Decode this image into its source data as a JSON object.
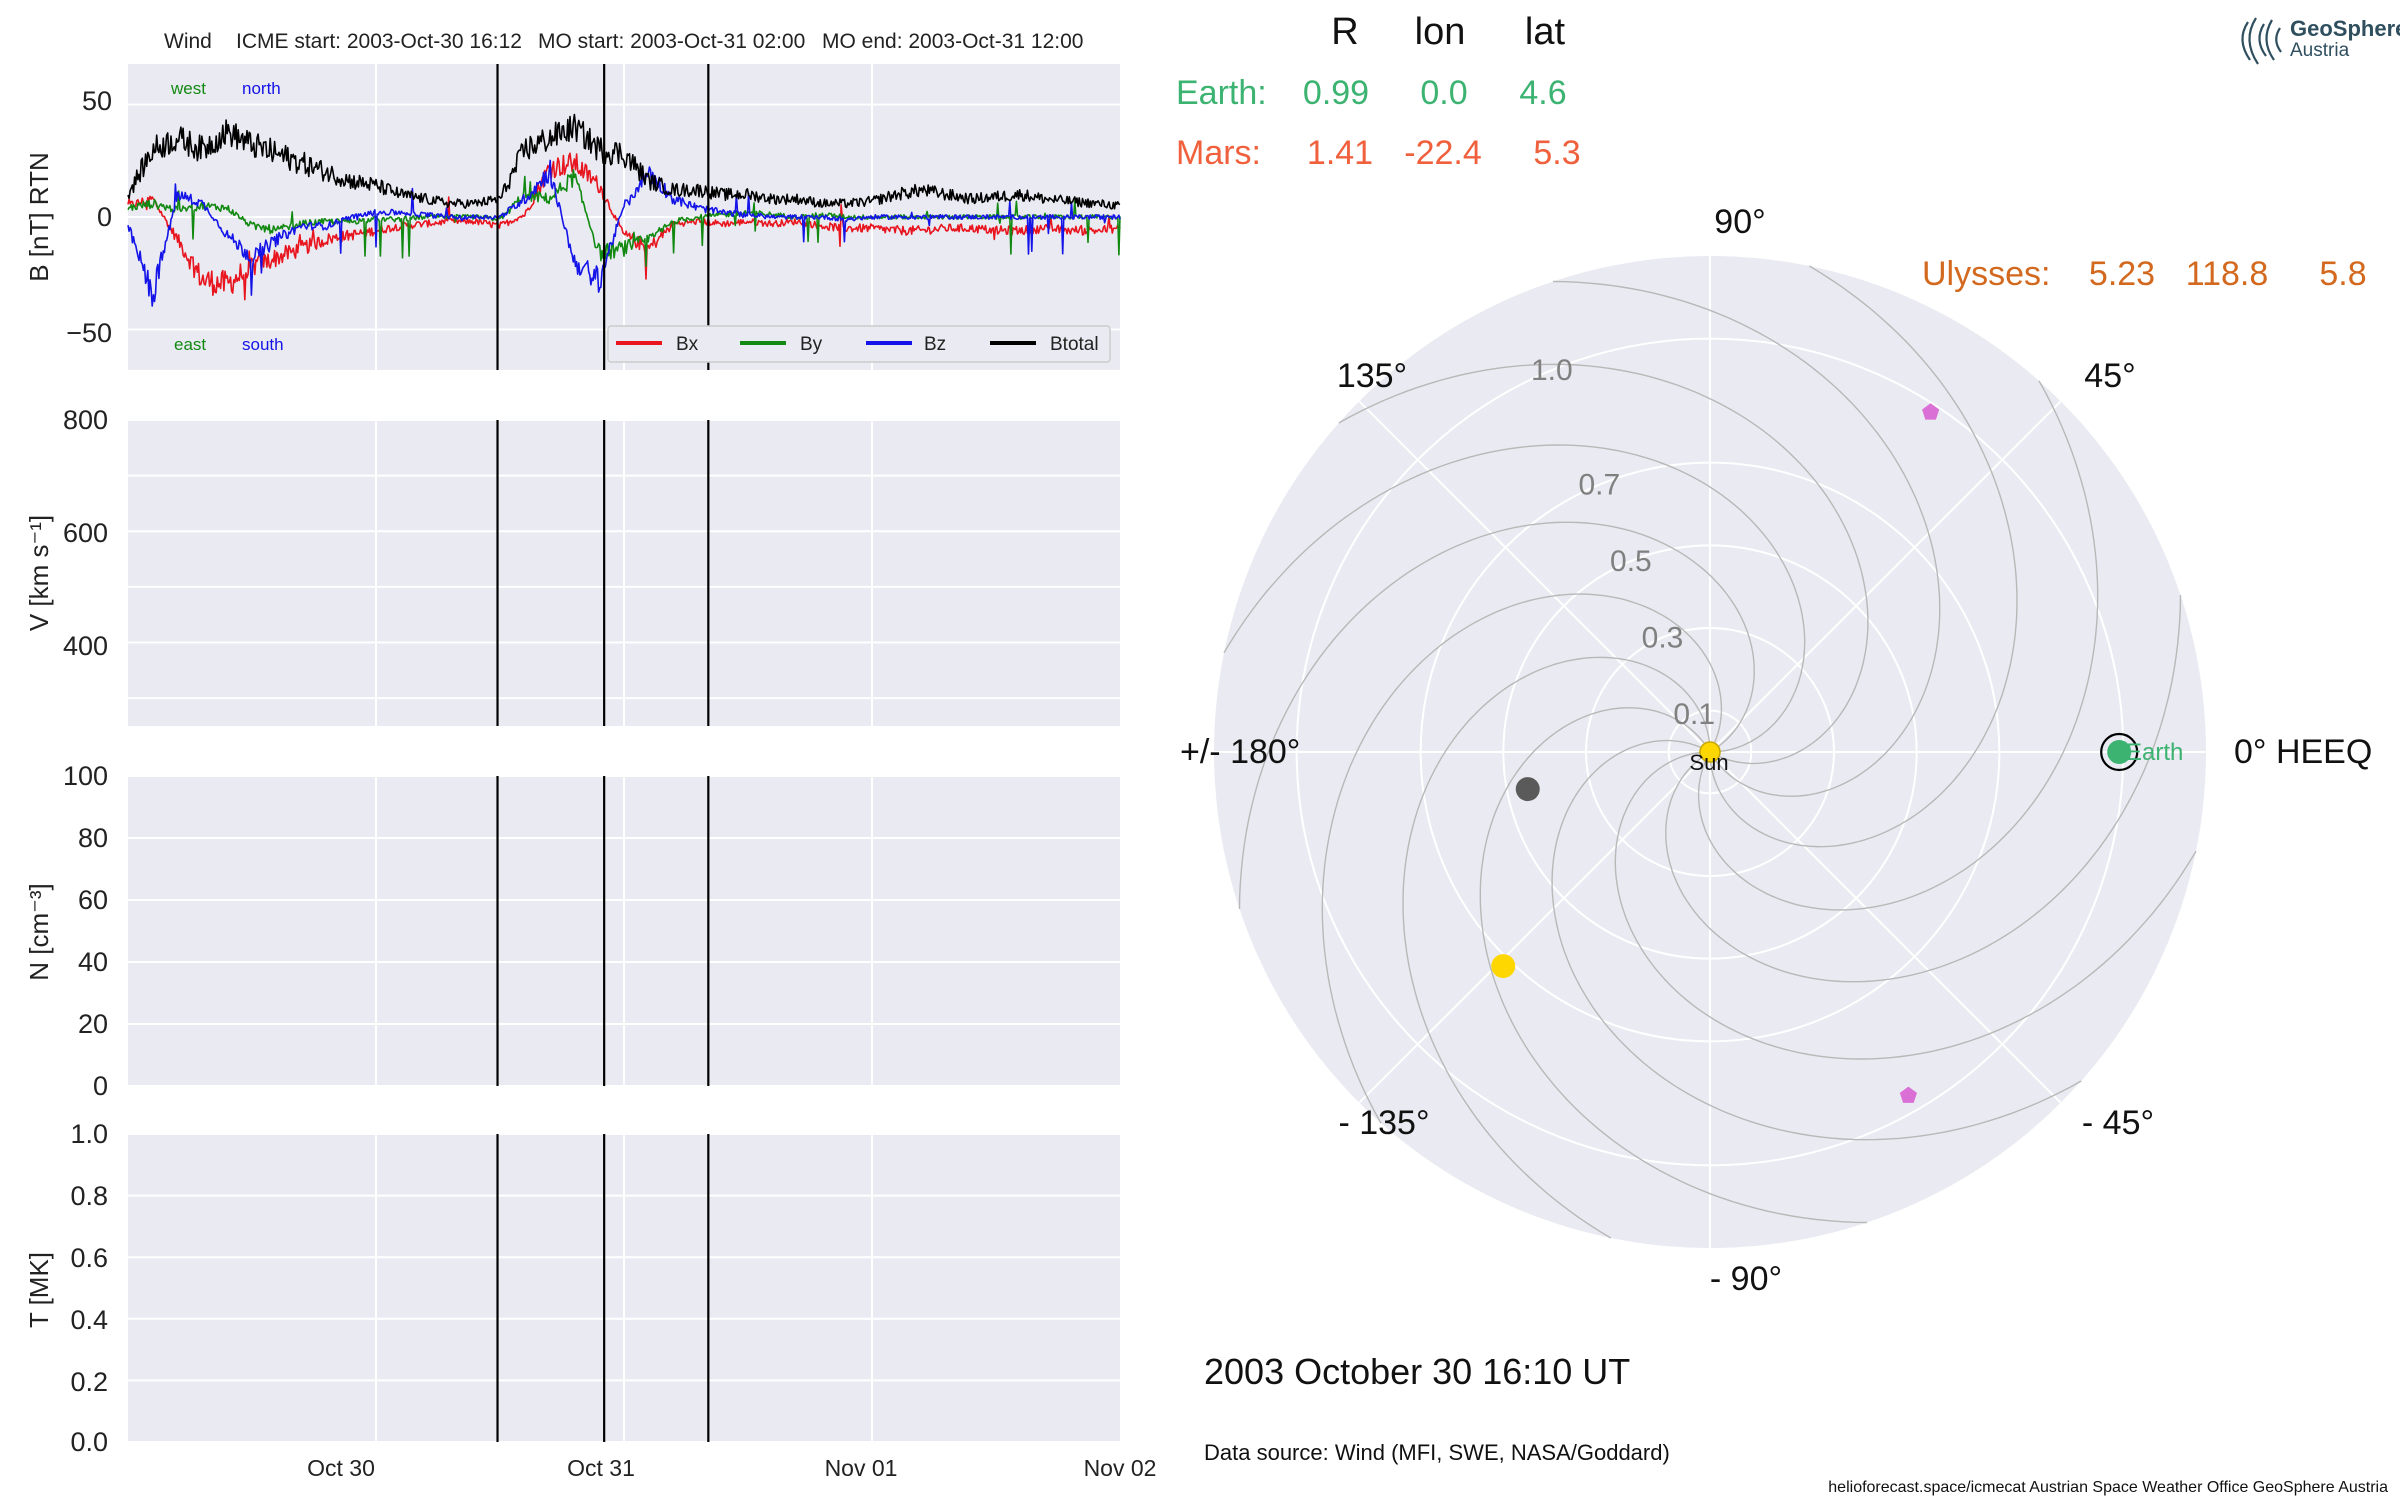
{
  "header": {
    "spacecraft": "Wind",
    "icme_start": "ICME start: 2003-Oct-30 16:12",
    "mo_start": "MO start: 2003-Oct-31 02:00",
    "mo_end": "MO end: 2003-Oct-31 12:00"
  },
  "planet_table": {
    "col_headers": [
      "R",
      "lon",
      "lat"
    ],
    "rows": [
      {
        "name": "Earth:",
        "R": "0.99",
        "lon": "0.0",
        "lat": "4.6",
        "color": "#3cb371"
      },
      {
        "name": "Mars:",
        "R": "1.41",
        "lon": "-22.4",
        "lat": "5.3",
        "color": "#f0603c"
      },
      {
        "name": "Ulysses:",
        "R": "5.23",
        "lon": "118.8",
        "lat": "5.8",
        "color": "#d2691e"
      }
    ]
  },
  "logo": {
    "line1": "GeoSphere",
    "line2": "Austria"
  },
  "date_label": "2003 October 30  16:10 UT",
  "data_source": "Data source: Wind (MFI, SWE, NASA/Goddard)",
  "footer": "helioforecast.space/icmecat   Austrian Space Weather Office   GeoSphere Austria",
  "chart_data": [
    {
      "type": "line",
      "ylabel": "B [nT] RTN",
      "ylim": [
        -68,
        68
      ],
      "yticks": [
        "50",
        "0",
        "−50"
      ],
      "x_range_days": [
        0,
        4
      ],
      "annotations": {
        "west": "west",
        "north": "north",
        "east": "east",
        "south": "south"
      },
      "event_lines_days": [
        1.49,
        1.92,
        2.34
      ],
      "legend": [
        "Bx",
        "By",
        "Bz",
        "Btotal"
      ],
      "series": [
        {
          "name": "Bx",
          "color": "#e8141e",
          "values": [
            5,
            8,
            -10,
            -28,
            -30,
            -22,
            -18,
            -14,
            -10,
            -8,
            -6,
            -4,
            -3,
            -2,
            -2,
            -4,
            1,
            22,
            24,
            14,
            -8,
            -14,
            -3,
            -2,
            -3,
            -2,
            -3,
            -2,
            -4,
            -5,
            -5,
            -6,
            -6,
            -5,
            -5,
            -6,
            -6,
            -5,
            -6,
            -6,
            -5
          ]
        },
        {
          "name": "By",
          "color": "#128a12",
          "values": [
            4,
            6,
            3,
            5,
            4,
            -4,
            -6,
            -3,
            -2,
            -2,
            -1,
            -1,
            0,
            0,
            0,
            -1,
            10,
            8,
            18,
            -16,
            -14,
            -10,
            -2,
            0,
            1,
            2,
            1,
            0,
            1,
            0,
            0,
            0,
            0,
            0,
            0,
            0,
            0,
            0,
            0,
            0,
            0
          ]
        },
        {
          "name": "Bz",
          "color": "#1414e8",
          "values": [
            -4,
            -35,
            10,
            6,
            -8,
            -18,
            -10,
            -4,
            -4,
            0,
            2,
            2,
            1,
            0,
            0,
            0,
            8,
            20,
            -20,
            -28,
            5,
            20,
            8,
            4,
            2,
            1,
            0,
            0,
            0,
            -1,
            0,
            0,
            0,
            0,
            0,
            0,
            0,
            0,
            0,
            0,
            0
          ]
        },
        {
          "name": "Btotal",
          "color": "#000000",
          "values": [
            10,
            30,
            35,
            30,
            38,
            32,
            28,
            24,
            20,
            16,
            14,
            10,
            8,
            6,
            6,
            8,
            30,
            35,
            40,
            30,
            28,
            16,
            12,
            12,
            10,
            10,
            8,
            8,
            6,
            6,
            7,
            10,
            12,
            10,
            8,
            9,
            10,
            8,
            7,
            6,
            5
          ]
        }
      ]
    },
    {
      "type": "line",
      "ylabel": "V [km s⁻¹]",
      "ylim": [
        250,
        800
      ],
      "yticks": [
        "800",
        "600",
        "400"
      ],
      "series": []
    },
    {
      "type": "line",
      "ylabel": "N [cm⁻³]",
      "ylim": [
        0,
        100
      ],
      "yticks": [
        "100",
        "80",
        "60",
        "40",
        "20",
        "0"
      ],
      "series": []
    },
    {
      "type": "line",
      "ylabel": "T [MK]",
      "ylim": [
        0,
        1
      ],
      "yticks": [
        "1.0",
        "0.8",
        "0.6",
        "0.4",
        "0.2",
        "0.0"
      ],
      "xticks": [
        "Oct 30",
        "Oct 31",
        "Nov 01",
        "Nov 02"
      ],
      "series": []
    },
    {
      "type": "scatter",
      "polar": true,
      "rticks": [
        "0.1",
        "0.3",
        "0.5",
        "0.7",
        "1.0"
      ],
      "angle_labels": {
        "a0": "0° HEEQ",
        "a45": "45°",
        "a90": "90°",
        "a135": "135°",
        "a180": "+/- 180°",
        "am135": "- 135°",
        "am90": "- 90°",
        "am45": "- 45°"
      },
      "sun_label": "Sun",
      "earth_label": "Earth",
      "points": [
        {
          "name": "Earth",
          "r": 0.99,
          "lon": 0.0,
          "color": "#3cb371",
          "marker": "circle"
        },
        {
          "name": "",
          "r": 0.45,
          "lon": -168.5,
          "color": "#5a5a5a",
          "marker": "circle"
        },
        {
          "name": "",
          "r": 0.72,
          "lon": -134,
          "color": "#ffd700",
          "marker": "circle"
        },
        {
          "name": "",
          "r": 0.98,
          "lon": 57,
          "color": "#da70d6",
          "marker": "pentagon"
        },
        {
          "name": "",
          "r": 0.96,
          "lon": -60,
          "color": "#da70d6",
          "marker": "pentagon"
        }
      ]
    }
  ]
}
